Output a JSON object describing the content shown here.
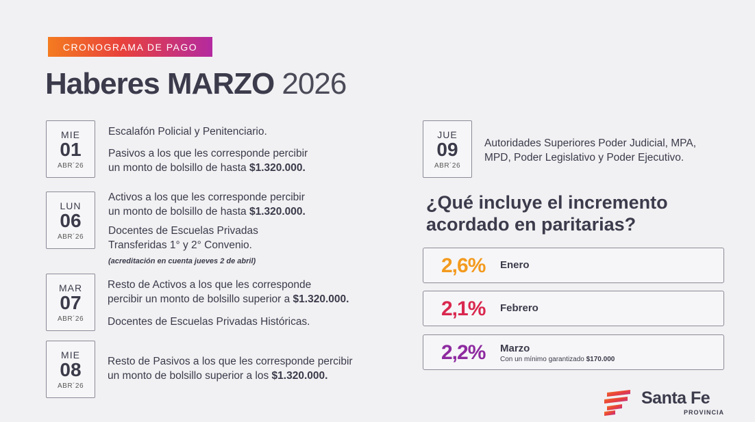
{
  "header": {
    "badge": "CRONOGRAMA DE PAGO",
    "title_bold": "Haberes MARZO",
    "title_year": "2026"
  },
  "schedule": [
    {
      "dow": "MIE",
      "day": "01",
      "month": "ABR´26",
      "line1": "Escalafón Policial y Penitenciario.",
      "line2a": "Pasivos a los que les corresponde percibir",
      "line2b": "un monto de bolsillo de hasta ",
      "amount": "$1.320.000."
    },
    {
      "dow": "LUN",
      "day": "06",
      "month": "ABR´26",
      "line1a": "Activos a los que les corresponde percibir",
      "line1b": "un monto de bolsillo de hasta ",
      "amount": "$1.320.000.",
      "line2a": "Docentes de Escuelas Privadas",
      "line2b": "Transferidas 1° y 2° Convenio.",
      "note": "(acreditación en cuenta jueves 2 de abril)"
    },
    {
      "dow": "MAR",
      "day": "07",
      "month": "ABR´26",
      "line1a": "Resto de Activos a los que les corresponde",
      "line1b": "percibir un monto de bolsillo superior a ",
      "amount": "$1.320.000.",
      "line2": "Docentes de Escuelas Privadas Históricas."
    },
    {
      "dow": "MIE",
      "day": "08",
      "month": "ABR´26",
      "line1a": "Resto de Pasivos a los que les corresponde percibir",
      "line1b": "un monto de bolsillo superior a los ",
      "amount": "$1.320.000."
    },
    {
      "dow": "JUE",
      "day": "09",
      "month": "ABR´26",
      "line1a": "Autoridades Superiores Poder Judicial, MPA,",
      "line1b": "MPD, Poder Legislativo y Poder Ejecutivo."
    }
  ],
  "increment": {
    "question_line1": "¿Qué incluye el  incremento",
    "question_line2": "acordado en paritarias?",
    "items": [
      {
        "pct": "2,6%",
        "month": "Enero",
        "color": "#f39a1e"
      },
      {
        "pct": "2,1%",
        "month": "Febrero",
        "color": "#d9284f"
      },
      {
        "pct": "2,2%",
        "month": "Marzo",
        "color": "#8e2aa0",
        "sub": "Con un mínimo garantizado ",
        "sub_amount": "$170.000"
      }
    ]
  },
  "logo": {
    "name": "Santa Fe",
    "sub": "PROVINCIA"
  }
}
